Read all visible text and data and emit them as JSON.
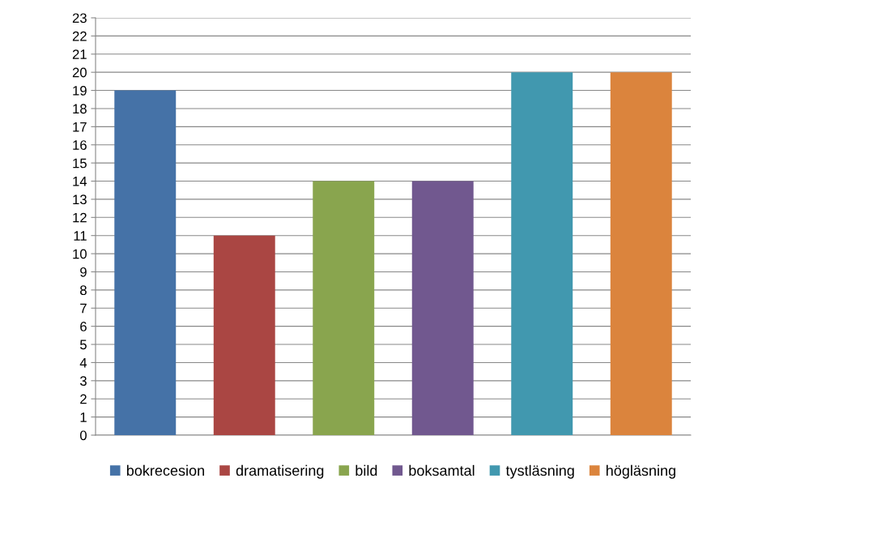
{
  "chart_data": {
    "type": "bar",
    "categories": [
      null,
      null,
      null,
      null,
      null,
      null
    ],
    "series": [
      {
        "name": "bokrecesion",
        "color": "#4572a7",
        "values": [
          19,
          null,
          null,
          null,
          null,
          null
        ]
      },
      {
        "name": "dramatisering",
        "color": "#aa4643",
        "values": [
          null,
          11,
          null,
          null,
          null,
          null
        ]
      },
      {
        "name": "bild",
        "color": "#89a54e",
        "values": [
          null,
          null,
          14,
          null,
          null,
          null
        ]
      },
      {
        "name": "boksamtal",
        "color": "#71588f",
        "values": [
          null,
          null,
          null,
          14,
          null,
          null
        ]
      },
      {
        "name": "tystläsning",
        "color": "#4198af",
        "values": [
          null,
          null,
          null,
          null,
          20,
          null
        ]
      },
      {
        "name": "högläsning",
        "color": "#db843d",
        "values": [
          null,
          null,
          null,
          null,
          null,
          20
        ]
      }
    ],
    "ylim": [
      0,
      23
    ],
    "yticks": [
      0,
      1,
      2,
      3,
      4,
      5,
      6,
      7,
      8,
      9,
      10,
      11,
      12,
      13,
      14,
      15,
      16,
      17,
      18,
      19,
      20,
      21,
      22,
      23
    ],
    "grid": "y",
    "legend": "bottom"
  }
}
